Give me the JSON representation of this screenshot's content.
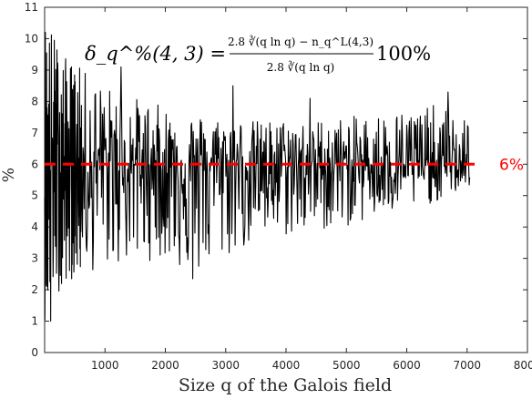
{
  "chart_data": {
    "type": "line",
    "xlabel": "Size q of the Galois field",
    "ylabel": "%",
    "formula": {
      "lhs": "δ_q^%(4, 3) =",
      "numerator": "2.8 ∛(q ln q) − n_q^L(4,3)",
      "denominator": "2.8 ∛(q ln q)",
      "suffix": "100%"
    },
    "xlim": [
      0,
      8000
    ],
    "ylim": [
      0,
      11
    ],
    "xticks": [
      1000,
      2000,
      3000,
      4000,
      5000,
      6000,
      7000,
      8000
    ],
    "yticks": [
      0,
      1,
      2,
      3,
      4,
      5,
      6,
      7,
      8,
      9,
      10,
      11
    ],
    "reference_line": {
      "y": 6,
      "label": "6%",
      "color": "#ff0000",
      "style": "dashed"
    },
    "series": [
      {
        "color": "#000000",
        "x_range": [
          0,
          7050
        ],
        "envelope_upper": [
          [
            0,
            11
          ],
          [
            300,
            9.5
          ],
          [
            1000,
            8.5
          ],
          [
            1700,
            8.0
          ],
          [
            2500,
            7.6
          ],
          [
            3500,
            7.4
          ],
          [
            5000,
            7.5
          ],
          [
            6500,
            7.9
          ],
          [
            7050,
            7.4
          ]
        ],
        "envelope_lower": [
          [
            0,
            1.0
          ],
          [
            300,
            2.2
          ],
          [
            1000,
            2.7
          ],
          [
            2000,
            3.0
          ],
          [
            2450,
            2.35
          ],
          [
            3500,
            3.5
          ],
          [
            5000,
            4.0
          ],
          [
            6500,
            4.8
          ],
          [
            7050,
            5.3
          ]
        ],
        "notable_points": [
          [
            100,
            1.0
          ],
          [
            280,
            2.2
          ],
          [
            1270,
            9.1
          ],
          [
            2450,
            2.35
          ],
          [
            3120,
            8.5
          ],
          [
            4400,
            8.1
          ],
          [
            6680,
            8.3
          ]
        ]
      }
    ]
  }
}
